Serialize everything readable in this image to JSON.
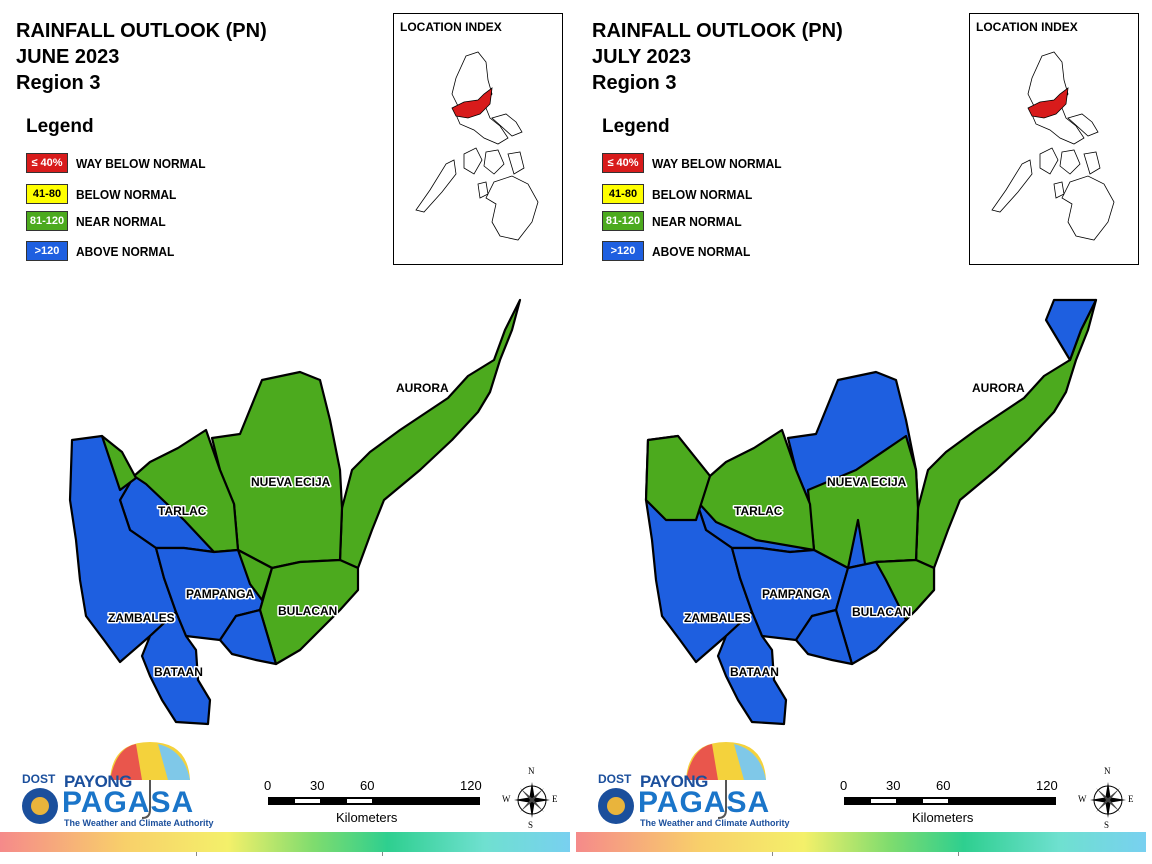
{
  "panels": [
    {
      "title": [
        "RAINFALL OUTLOOK (PN)",
        "JUNE 2023",
        "Region 3"
      ],
      "legend": {
        "heading": "Legend",
        "items": [
          {
            "code": "≤ 40%",
            "label": "WAY BELOW NORMAL",
            "color": "#d81b1b",
            "text_color": "#ffffff"
          },
          {
            "code": "41-80",
            "label": "BELOW NORMAL",
            "color": "#ffff00",
            "text_color": "#000000"
          },
          {
            "code": "81-120",
            "label": "NEAR NORMAL",
            "color": "#4caa1e",
            "text_color": "#ffffff"
          },
          {
            "code": ">120",
            "label": "ABOVE NORMAL",
            "color": "#1e5fe0",
            "text_color": "#ffffff"
          }
        ]
      },
      "inset_title": "LOCATION INDEX",
      "provinces": [
        "AURORA",
        "NUEVA ECIJA",
        "TARLAC",
        "PAMPANGA",
        "BULACAN",
        "ZAMBALES",
        "BATAAN"
      ],
      "scale": {
        "ticks": [
          "0",
          "30",
          "60",
          "120"
        ],
        "unit": "Kilometers"
      },
      "compass": [
        "N",
        "S",
        "E",
        "W"
      ],
      "logo": {
        "dost": "DOST",
        "payong": "PAYONG",
        "pagasa": "PAGASA",
        "tagline": "The Weather and Climate Authority"
      }
    },
    {
      "title": [
        "RAINFALL OUTLOOK (PN)",
        "JULY 2023",
        "Region 3"
      ],
      "legend": {
        "heading": "Legend",
        "items": [
          {
            "code": "≤ 40%",
            "label": "WAY BELOW NORMAL",
            "color": "#d81b1b",
            "text_color": "#ffffff"
          },
          {
            "code": "41-80",
            "label": "BELOW NORMAL",
            "color": "#ffff00",
            "text_color": "#000000"
          },
          {
            "code": "81-120",
            "label": "NEAR NORMAL",
            "color": "#4caa1e",
            "text_color": "#ffffff"
          },
          {
            "code": ">120",
            "label": "ABOVE NORMAL",
            "color": "#1e5fe0",
            "text_color": "#ffffff"
          }
        ]
      },
      "inset_title": "LOCATION INDEX",
      "provinces": [
        "AURORA",
        "NUEVA ECIJA",
        "TARLAC",
        "PAMPANGA",
        "BULACAN",
        "ZAMBALES",
        "BATAAN"
      ],
      "scale": {
        "ticks": [
          "0",
          "30",
          "60",
          "120"
        ],
        "unit": "Kilometers"
      },
      "compass": [
        "N",
        "S",
        "E",
        "W"
      ],
      "logo": {
        "dost": "DOST",
        "payong": "PAYONG",
        "pagasa": "PAGASA",
        "tagline": "The Weather and Climate Authority"
      }
    }
  ],
  "colors": {
    "near_normal": "#4caa1e",
    "above_normal": "#1e5fe0",
    "highlight": "#d81b1b"
  }
}
